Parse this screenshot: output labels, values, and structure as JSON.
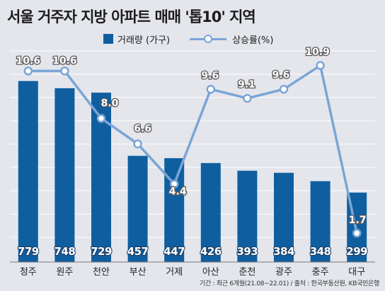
{
  "title": "서울 거주자 지방 아파트 매매 '톱10' 지역",
  "footer": "기간 : 최근 6개월(21.08~22.01) / 출처 : 한국부동산원, KB국민은행",
  "colors": {
    "bar": "#0f5fa0",
    "line": "#7ba5d6",
    "background": "#e4e6ec",
    "grid": "#ffffff"
  },
  "chart_data": {
    "type": "bar",
    "categories": [
      "청주",
      "원주",
      "천안",
      "부산",
      "거제",
      "아산",
      "춘천",
      "광주",
      "충주",
      "대구"
    ],
    "series": [
      {
        "name": "거래량 (가구)",
        "type": "bar",
        "values": [
          779,
          748,
          729,
          457,
          447,
          426,
          393,
          384,
          348,
          299
        ]
      },
      {
        "name": "상승률(%)",
        "type": "line",
        "values": [
          10.6,
          10.6,
          8.0,
          6.6,
          4.4,
          9.6,
          9.1,
          9.6,
          10.9,
          1.7
        ]
      }
    ],
    "legend_position": "top",
    "grid": true
  }
}
